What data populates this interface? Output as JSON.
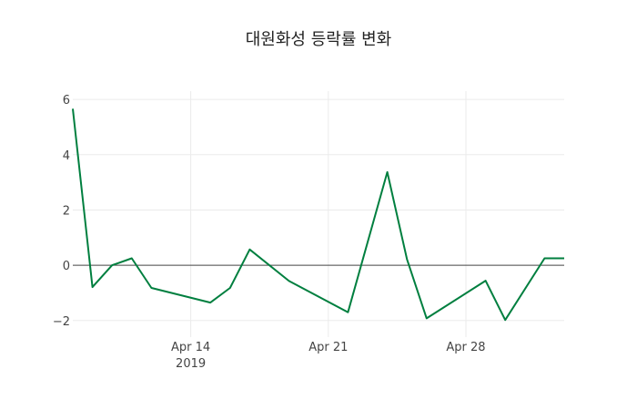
{
  "chart_data": {
    "type": "line",
    "title": "대원화성 등락률 변화",
    "xlabel": "",
    "ylabel": "",
    "x_range": [
      "2019-04-08",
      "2019-05-03"
    ],
    "ylim": [
      -2.6,
      6.3
    ],
    "grid": true,
    "line_color": "#007f3f",
    "zero_line_color": "#444444",
    "x_ticks": [
      {
        "date": "2019-04-14",
        "label": "Apr 14",
        "sublabel": "2019"
      },
      {
        "date": "2019-04-21",
        "label": "Apr 21",
        "sublabel": ""
      },
      {
        "date": "2019-04-28",
        "label": "Apr 28",
        "sublabel": ""
      }
    ],
    "y_ticks": [
      -2,
      0,
      2,
      4,
      6
    ],
    "y_tick_labels": [
      "−2",
      "0",
      "2",
      "4",
      "6"
    ],
    "series": [
      {
        "name": "등락률",
        "x": [
          "2019-04-08",
          "2019-04-09",
          "2019-04-10",
          "2019-04-11",
          "2019-04-12",
          "2019-04-15",
          "2019-04-16",
          "2019-04-17",
          "2019-04-19",
          "2019-04-22",
          "2019-04-24",
          "2019-04-25",
          "2019-04-26",
          "2019-04-29",
          "2019-04-30",
          "2019-05-02",
          "2019-05-03"
        ],
        "y": [
          5.66,
          -0.79,
          0.0,
          0.25,
          -0.82,
          -1.35,
          -0.82,
          0.57,
          -0.57,
          -1.7,
          3.37,
          0.22,
          -1.92,
          -0.56,
          -1.98,
          0.25,
          0.25
        ]
      }
    ]
  }
}
